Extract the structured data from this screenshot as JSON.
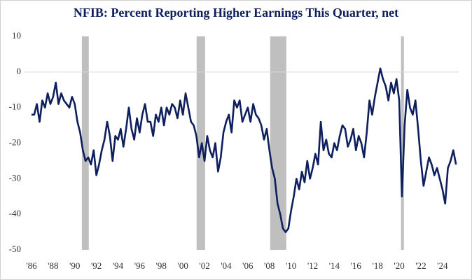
{
  "chart_data": {
    "type": "line",
    "title": "NFIB: Percent Reporting Higher Earnings This Quarter, net",
    "x": [
      1986,
      1986.25,
      1986.5,
      1986.75,
      1987,
      1987.25,
      1987.5,
      1987.75,
      1988,
      1988.25,
      1988.5,
      1988.75,
      1989,
      1989.25,
      1989.5,
      1989.75,
      1990,
      1990.25,
      1990.5,
      1990.75,
      1991,
      1991.25,
      1991.5,
      1991.75,
      1992,
      1992.25,
      1992.5,
      1992.75,
      1993,
      1993.25,
      1993.5,
      1993.75,
      1994,
      1994.25,
      1994.5,
      1994.75,
      1995,
      1995.25,
      1995.5,
      1995.75,
      1996,
      1996.25,
      1996.5,
      1996.75,
      1997,
      1997.25,
      1997.5,
      1997.75,
      1998,
      1998.25,
      1998.5,
      1998.75,
      1999,
      1999.25,
      1999.5,
      1999.75,
      2000,
      2000.25,
      2000.5,
      2000.75,
      2001,
      2001.25,
      2001.5,
      2001.75,
      2002,
      2002.25,
      2002.5,
      2002.75,
      2003,
      2003.25,
      2003.5,
      2003.75,
      2004,
      2004.25,
      2004.5,
      2004.75,
      2005,
      2005.25,
      2005.5,
      2005.75,
      2006,
      2006.25,
      2006.5,
      2006.75,
      2007,
      2007.25,
      2007.5,
      2007.75,
      2008,
      2008.25,
      2008.5,
      2008.75,
      2009,
      2009.25,
      2009.5,
      2009.75,
      2010,
      2010.25,
      2010.5,
      2010.75,
      2011,
      2011.25,
      2011.5,
      2011.75,
      2012,
      2012.25,
      2012.5,
      2012.75,
      2013,
      2013.25,
      2013.5,
      2013.75,
      2014,
      2014.25,
      2014.5,
      2014.75,
      2015,
      2015.25,
      2015.5,
      2015.75,
      2016,
      2016.25,
      2016.5,
      2016.75,
      2017,
      2017.25,
      2017.5,
      2017.75,
      2018,
      2018.25,
      2018.5,
      2018.75,
      2019,
      2019.25,
      2019.5,
      2019.75,
      2020,
      2020.25,
      2020.5,
      2020.75,
      2021,
      2021.25,
      2021.5,
      2021.75,
      2022,
      2022.25,
      2022.5,
      2022.75,
      2023,
      2023.25,
      2023.5,
      2023.75,
      2024,
      2024.25,
      2024.5,
      2024.75,
      2025,
      2025.25
    ],
    "series": [
      {
        "color": "#0d1f5c",
        "values": [
          -12,
          -12,
          -9,
          -14,
          -8,
          -10,
          -6,
          -9,
          -7,
          -3,
          -9,
          -6,
          -8,
          -9,
          -10,
          -7,
          -9,
          -14,
          -17,
          -22,
          -25,
          -24,
          -26,
          -22,
          -29,
          -26,
          -22,
          -19,
          -14,
          -18,
          -25,
          -18,
          -19,
          -16,
          -21,
          -16,
          -10,
          -16,
          -19,
          -13,
          -17,
          -12,
          -9,
          -14,
          -14,
          -18,
          -12,
          -14,
          -10,
          -15,
          -10,
          -12,
          -9,
          -10,
          -13,
          -8,
          -12,
          -6,
          -10,
          -14,
          -15,
          -18,
          -24,
          -20,
          -25,
          -18,
          -22,
          -24,
          -20,
          -28,
          -24,
          -17,
          -14,
          -12,
          -17,
          -8,
          -10,
          -8,
          -14,
          -12,
          -10,
          -14,
          -9,
          -12,
          -13,
          -15,
          -19,
          -16,
          -22,
          -27,
          -30,
          -37,
          -40,
          -44,
          -45,
          -44,
          -39,
          -35,
          -30,
          -33,
          -28,
          -31,
          -25,
          -30,
          -27,
          -23,
          -26,
          -14,
          -22,
          -19,
          -23,
          -24,
          -20,
          -22,
          -18,
          -15,
          -16,
          -21,
          -19,
          -16,
          -22,
          -18,
          -20,
          -24,
          -17,
          -8,
          -12,
          -7,
          -3,
          1,
          -2,
          -4,
          -8,
          -3,
          -6,
          -2,
          -8,
          -35,
          -15,
          -5,
          -10,
          -12,
          -8,
          -16,
          -25,
          -32,
          -28,
          -24,
          -26,
          -29,
          -27,
          -30,
          -33,
          -37,
          -27,
          -25,
          -22,
          -26
        ]
      }
    ],
    "shaded_periods": [
      [
        1990.66,
        1991.3
      ],
      [
        2001.27,
        2002.05
      ],
      [
        2008.07,
        2009.56
      ],
      [
        2020.17,
        2020.43
      ]
    ],
    "shade_color": "#bfbfbf",
    "xlim": [
      1985,
      2025.5
    ],
    "xticks": [
      {
        "value": 1986,
        "label": "'86"
      },
      {
        "value": 1988,
        "label": "'88"
      },
      {
        "value": 1990,
        "label": "'90"
      },
      {
        "value": 1992,
        "label": "'92"
      },
      {
        "value": 1994,
        "label": "'94"
      },
      {
        "value": 1996,
        "label": "'96"
      },
      {
        "value": 1998,
        "label": "'98"
      },
      {
        "value": 2000,
        "label": "'00"
      },
      {
        "value": 2002,
        "label": "'02"
      },
      {
        "value": 2004,
        "label": "'04"
      },
      {
        "value": 2006,
        "label": "'06"
      },
      {
        "value": 2008,
        "label": "'08"
      },
      {
        "value": 2010,
        "label": "'10"
      },
      {
        "value": 2012,
        "label": "'12"
      },
      {
        "value": 2014,
        "label": "'14"
      },
      {
        "value": 2016,
        "label": "'16"
      },
      {
        "value": 2018,
        "label": "'18"
      },
      {
        "value": 2020,
        "label": "'20"
      },
      {
        "value": 2022,
        "label": "'22"
      },
      {
        "value": 2024,
        "label": "'24"
      }
    ],
    "ylim": [
      -50,
      10
    ],
    "yticks": [
      10,
      0,
      -10,
      -20,
      -30,
      -40,
      -50
    ]
  }
}
